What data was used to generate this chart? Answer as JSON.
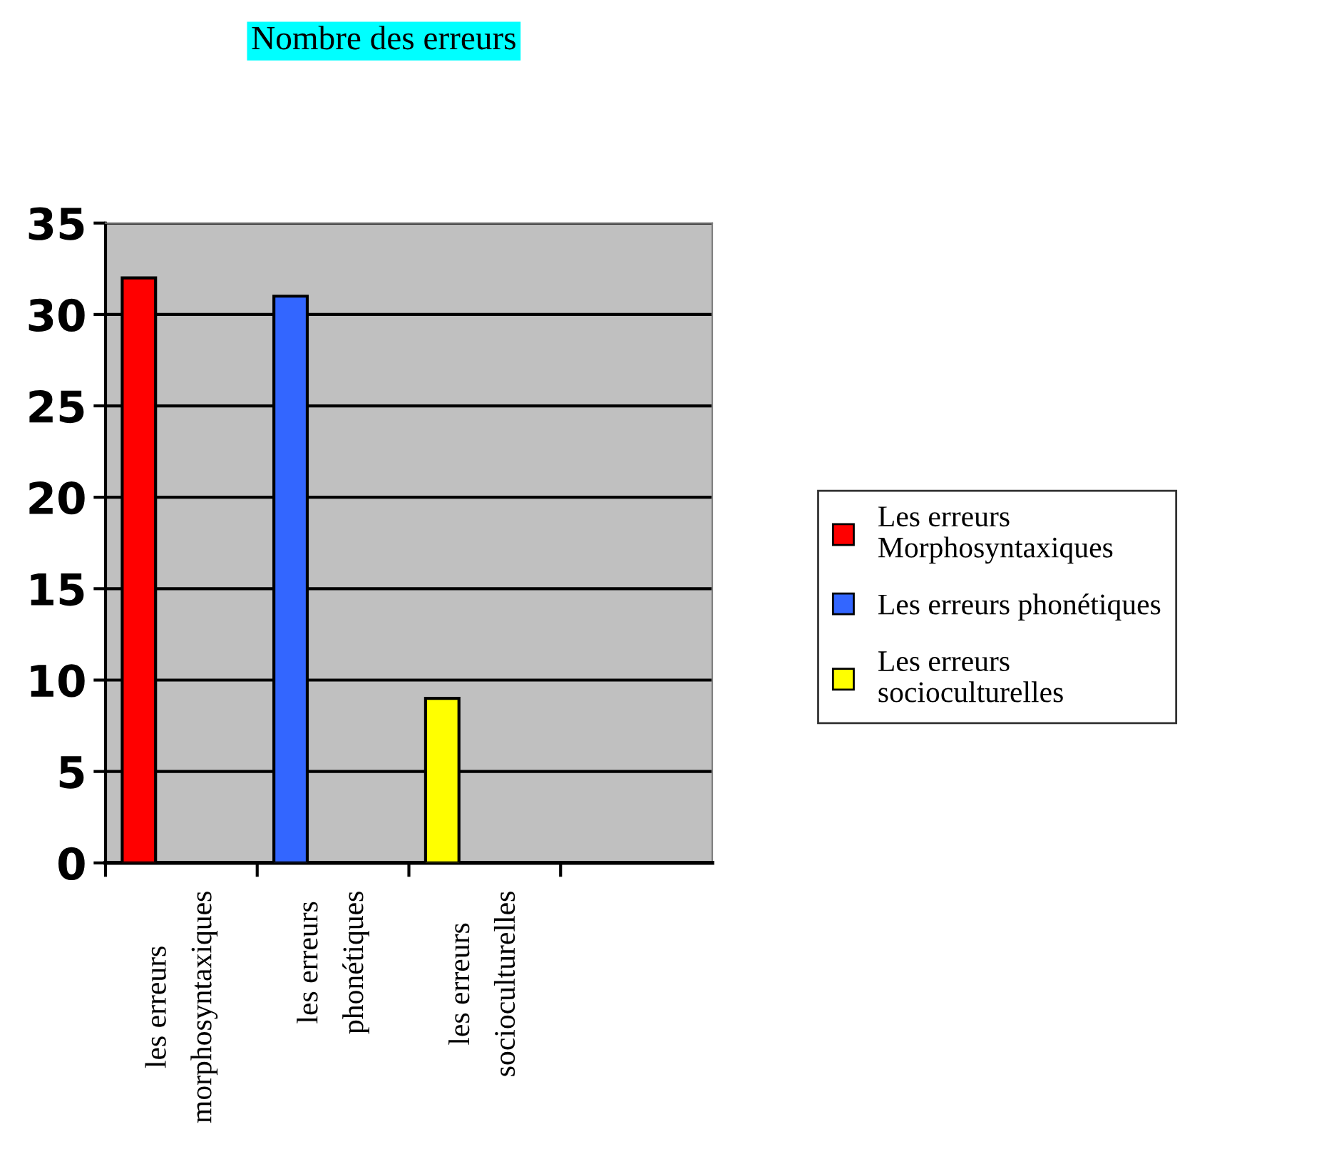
{
  "chart_data": {
    "type": "bar",
    "title": "Nombre des erreurs",
    "categories": [
      "les erreurs\nmorphosyntaxiques",
      "les erreurs\nphonétiques",
      "les erreurs\nsocioculturelles",
      null
    ],
    "series": [
      {
        "name": "Les erreurs\nMorphosyntaxiques",
        "color": "#ff0000",
        "values": [
          32,
          null,
          null,
          null
        ]
      },
      {
        "name": "Les erreurs phonétiques",
        "color": "#3366ff",
        "values": [
          null,
          31,
          null,
          null
        ]
      },
      {
        "name": "Les erreurs\nsocioculturelles",
        "color": "#ffff00",
        "values": [
          null,
          null,
          9,
          null
        ]
      }
    ],
    "ylim": [
      0,
      35
    ],
    "yticks": [
      0,
      5,
      10,
      15,
      20,
      25,
      30,
      35
    ],
    "grid": "y",
    "legend": "right"
  }
}
